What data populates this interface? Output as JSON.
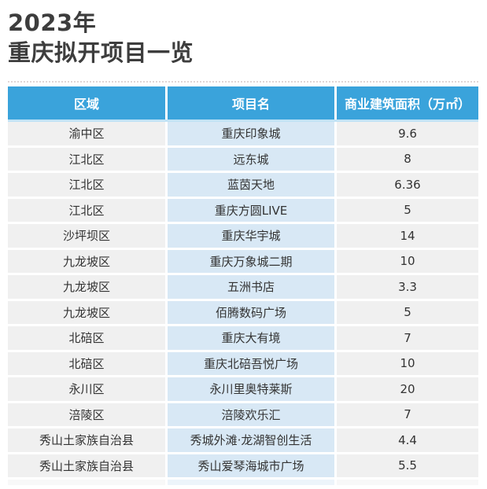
{
  "title": {
    "line1": "2023年",
    "line2": "重庆拟开项目一览"
  },
  "colors": {
    "header_bg": "#3aa3db",
    "project_column_bg": "#d8e8f5",
    "region_area_column_bg": "#f0f0f0",
    "header_text": "#ffffff",
    "cell_text": "#333333",
    "title_text": "#3d3d3d"
  },
  "chart_data": {
    "type": "table",
    "title": "2023年 重庆拟开项目一览",
    "columns": [
      "区域",
      "项目名",
      "商业建筑面积（万㎡）"
    ],
    "rows": [
      [
        "渝中区",
        "重庆印象城",
        9.6
      ],
      [
        "江北区",
        "远东城",
        8
      ],
      [
        "江北区",
        "蓝茵天地",
        6.36
      ],
      [
        "江北区",
        "重庆方圆LIVE",
        5
      ],
      [
        "沙坪坝区",
        "重庆华宇城",
        14
      ],
      [
        "九龙坡区",
        "重庆万象城二期",
        10
      ],
      [
        "九龙坡区",
        "五洲书店",
        3.3
      ],
      [
        "九龙坡区",
        "佰腾数码广场",
        5
      ],
      [
        "北碚区",
        "重庆大有境",
        7
      ],
      [
        "北碚区",
        "重庆北碚吾悦广场",
        10
      ],
      [
        "永川区",
        "永川里奥特莱斯",
        20
      ],
      [
        "涪陵区",
        "涪陵欢乐汇",
        7
      ],
      [
        "秀山土家族自治县",
        "秀城外滩·龙湖智创生活",
        4.4
      ],
      [
        "秀山土家族自治县",
        "秀山爱琴海城市广场",
        5.5
      ]
    ]
  }
}
